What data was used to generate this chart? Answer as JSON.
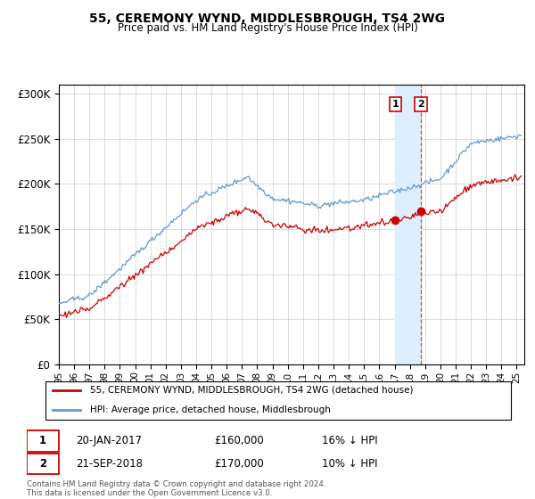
{
  "title": "55, CEREMONY WYND, MIDDLESBROUGH, TS4 2WG",
  "subtitle": "Price paid vs. HM Land Registry's House Price Index (HPI)",
  "ylabel_ticks": [
    "£0",
    "£50K",
    "£100K",
    "£150K",
    "£200K",
    "£250K",
    "£300K"
  ],
  "ytick_vals": [
    0,
    50000,
    100000,
    150000,
    200000,
    250000,
    300000
  ],
  "ylim": [
    0,
    310000
  ],
  "xlim_start": 1995.0,
  "xlim_end": 2025.5,
  "legend_line1": "55, CEREMONY WYND, MIDDLESBROUGH, TS4 2WG (detached house)",
  "legend_line2": "HPI: Average price, detached house, Middlesbrough",
  "sale1_date": "20-JAN-2017",
  "sale1_price": "£160,000",
  "sale1_rel": "16% ↓ HPI",
  "sale2_date": "21-SEP-2018",
  "sale2_price": "£170,000",
  "sale2_rel": "10% ↓ HPI",
  "footer": "Contains HM Land Registry data © Crown copyright and database right 2024.\nThis data is licensed under the Open Government Licence v3.0.",
  "sale1_x": 2017.05,
  "sale2_x": 2018.72,
  "line_color_red": "#cc0000",
  "line_color_blue": "#6699cc",
  "highlight_fill": "#ddeeff",
  "vline_color": "#dd4444",
  "box_edge_color": "#cc0000",
  "xtick_labels": [
    "95",
    "96",
    "97",
    "98",
    "99",
    "00",
    "01",
    "02",
    "03",
    "04",
    "05",
    "06",
    "07",
    "08",
    "09",
    "10",
    "11",
    "12",
    "13",
    "14",
    "15",
    "16",
    "17",
    "18",
    "19",
    "20",
    "21",
    "22",
    "23",
    "24",
    "25"
  ],
  "xtick_years": [
    1995,
    1996,
    1997,
    1998,
    1999,
    2000,
    2001,
    2002,
    2003,
    2004,
    2005,
    2006,
    2007,
    2008,
    2009,
    2010,
    2011,
    2012,
    2013,
    2014,
    2015,
    2016,
    2017,
    2018,
    2019,
    2020,
    2021,
    2022,
    2023,
    2024,
    2025
  ]
}
